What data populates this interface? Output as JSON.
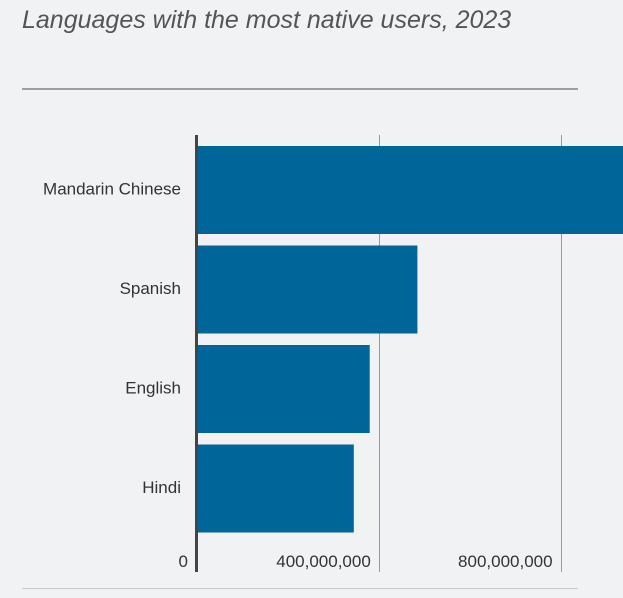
{
  "title": "Languages with the most native users, 2023",
  "colors": {
    "bar": "#006699",
    "grid": "#9a9a9a",
    "axis": "#444444",
    "background": "#f1f2f4"
  },
  "chart_data": {
    "type": "bar",
    "orientation": "horizontal",
    "title": "Languages with the most native users, 2023",
    "categories": [
      "Mandarin Chinese",
      "Spanish",
      "English",
      "Hindi"
    ],
    "values": [
      941000000,
      485000000,
      380000000,
      345000000
    ],
    "xlim": [
      0,
      1000000000
    ],
    "x_ticks": [
      {
        "value": 0,
        "label": "0"
      },
      {
        "value": 400000000,
        "label": "400,000,000"
      },
      {
        "value": 800000000,
        "label": "800,000,000"
      }
    ],
    "grid": true,
    "legend": "none",
    "xlabel": "",
    "ylabel": ""
  }
}
